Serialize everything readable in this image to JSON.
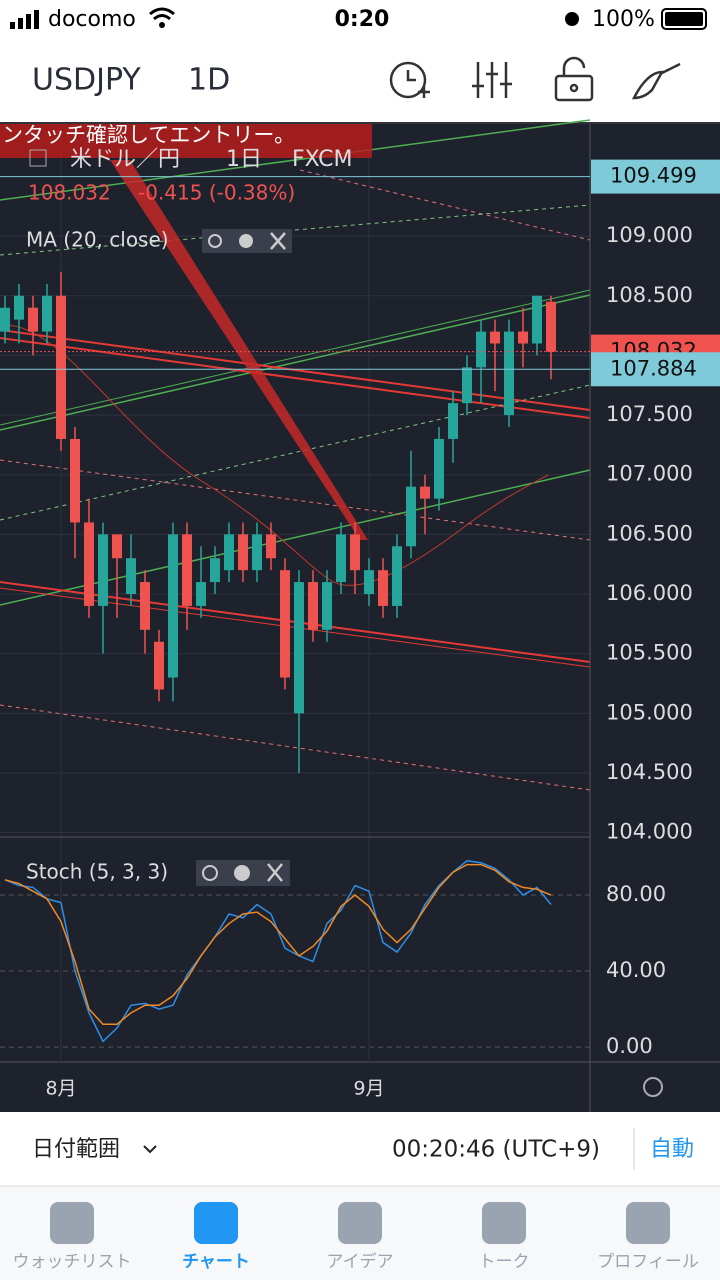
{
  "status_bar": {
    "carrier": "docomo",
    "time": "0:20",
    "battery": "100%"
  },
  "header": {
    "symbol": "USDJPY",
    "interval": "1D"
  },
  "banner": "ンタッチ確認してエントリー。",
  "legend": {
    "name": "米ドル／円",
    "interval": "1日",
    "source": "FXCM",
    "last": "108.032",
    "change": "-0.415 (-0.38%)",
    "indicator": "MA (20, close)"
  },
  "chart_data": {
    "type": "candlestick",
    "categories": [
      null,
      null,
      null,
      null,
      "8月",
      null,
      null,
      null,
      null,
      null,
      null,
      null,
      null,
      null,
      null,
      null,
      null,
      null,
      null,
      null,
      null,
      null,
      null,
      null,
      null,
      null,
      "9月",
      null,
      null,
      null,
      null,
      null,
      null,
      null,
      null,
      null,
      null,
      null,
      null,
      null
    ],
    "candles": {
      "open": [
        108.2,
        108.3,
        108.4,
        108.2,
        108.5,
        107.3,
        106.6,
        105.9,
        106.5,
        106.0,
        106.1,
        105.6,
        105.3,
        106.5,
        105.9,
        106.1,
        106.2,
        106.5,
        106.2,
        106.5,
        106.2,
        105.0,
        106.1,
        105.7,
        106.1,
        106.5,
        106.0,
        106.2,
        105.9,
        106.4,
        106.9,
        106.8,
        107.3,
        107.6,
        107.9,
        108.2,
        107.5,
        108.2,
        108.1,
        108.45
      ],
      "high": [
        108.5,
        108.6,
        108.5,
        108.6,
        108.7,
        107.4,
        106.8,
        106.6,
        106.5,
        106.5,
        106.2,
        105.7,
        106.6,
        106.6,
        106.4,
        106.4,
        106.6,
        106.6,
        106.6,
        106.6,
        106.3,
        106.2,
        106.2,
        106.2,
        106.6,
        106.6,
        106.3,
        106.3,
        106.5,
        107.2,
        107.0,
        107.4,
        107.7,
        108.0,
        108.3,
        108.3,
        108.3,
        108.4,
        108.5,
        108.5
      ],
      "low": [
        108.1,
        108.1,
        108.0,
        108.1,
        107.2,
        106.3,
        105.8,
        105.5,
        105.8,
        105.9,
        105.5,
        105.1,
        105.1,
        105.7,
        105.8,
        106.0,
        106.1,
        106.1,
        106.1,
        106.2,
        105.2,
        104.5,
        105.6,
        105.6,
        106.0,
        106.0,
        105.9,
        105.8,
        105.8,
        106.3,
        106.5,
        106.7,
        107.1,
        107.5,
        107.6,
        107.7,
        107.4,
        107.9,
        108.0,
        107.8
      ],
      "close": [
        108.4,
        108.5,
        108.2,
        108.5,
        107.3,
        106.6,
        105.9,
        106.5,
        106.3,
        106.3,
        105.7,
        105.2,
        106.5,
        105.9,
        106.1,
        106.3,
        106.5,
        106.2,
        106.5,
        106.3,
        105.3,
        106.1,
        105.7,
        106.1,
        106.5,
        106.2,
        106.2,
        105.9,
        106.4,
        106.9,
        106.8,
        107.3,
        107.6,
        107.9,
        108.2,
        108.1,
        108.2,
        108.1,
        108.5,
        108.032
      ]
    },
    "up_color": "#26a69a",
    "down_color": "#ef5350",
    "ylim": [
      103.98,
      109.94
    ],
    "yticks": [
      {
        "value": 109.0,
        "label": "109.000"
      },
      {
        "value": 108.5,
        "label": "108.500"
      },
      {
        "value": 108.0,
        "label": "108.000"
      },
      {
        "value": 107.5,
        "label": "107.500"
      },
      {
        "value": 107.0,
        "label": "107.000"
      },
      {
        "value": 106.5,
        "label": "106.500"
      },
      {
        "value": 106.0,
        "label": "106.000"
      },
      {
        "value": 105.5,
        "label": "105.500"
      },
      {
        "value": 105.0,
        "label": "105.000"
      },
      {
        "value": 104.5,
        "label": "104.500"
      },
      {
        "value": 104.0,
        "label": "104.000"
      }
    ],
    "price_marks": [
      {
        "value": 109.499,
        "color": "#7ecad9"
      },
      {
        "value": 108.032,
        "color": "#ef5350"
      },
      {
        "value": 107.884,
        "color": "#7ecad9"
      }
    ],
    "stoch": {
      "title": "Stoch (5, 3, 3)",
      "ylim": [
        -6.8,
        110
      ],
      "yticks": [
        {
          "value": 80,
          "label": "80.00"
        },
        {
          "value": 40,
          "label": "40.00"
        },
        {
          "value": 0,
          "label": "0.00"
        }
      ],
      "series": [
        {
          "name": "%K",
          "color": "#2f8fe8",
          "values": [
            88,
            85,
            84,
            78,
            76,
            40,
            18,
            3,
            10,
            22,
            23,
            20,
            22,
            38,
            48,
            58,
            70,
            68,
            75,
            70,
            52,
            48,
            45,
            65,
            72,
            85,
            82,
            55,
            50,
            60,
            75,
            85,
            92,
            98,
            97,
            94,
            88,
            80,
            84,
            75
          ]
        },
        {
          "name": "%D",
          "color": "#f08a24",
          "values": [
            88,
            86,
            82,
            78,
            66,
            45,
            20,
            12,
            12,
            18,
            22,
            22,
            27,
            36,
            48,
            58,
            65,
            70,
            71,
            66,
            57,
            48,
            53,
            61,
            74,
            80,
            74,
            62,
            55,
            62,
            73,
            84,
            92,
            96,
            96,
            93,
            87,
            84,
            83,
            80
          ]
        }
      ]
    }
  },
  "footer": {
    "range": "日付範囲",
    "clock": "00:20:46 (UTC+9)",
    "auto": "自動"
  },
  "tabs": [
    "ウォッチリスト",
    "チャート",
    "アイデア",
    "トーク",
    "プロフィール"
  ]
}
